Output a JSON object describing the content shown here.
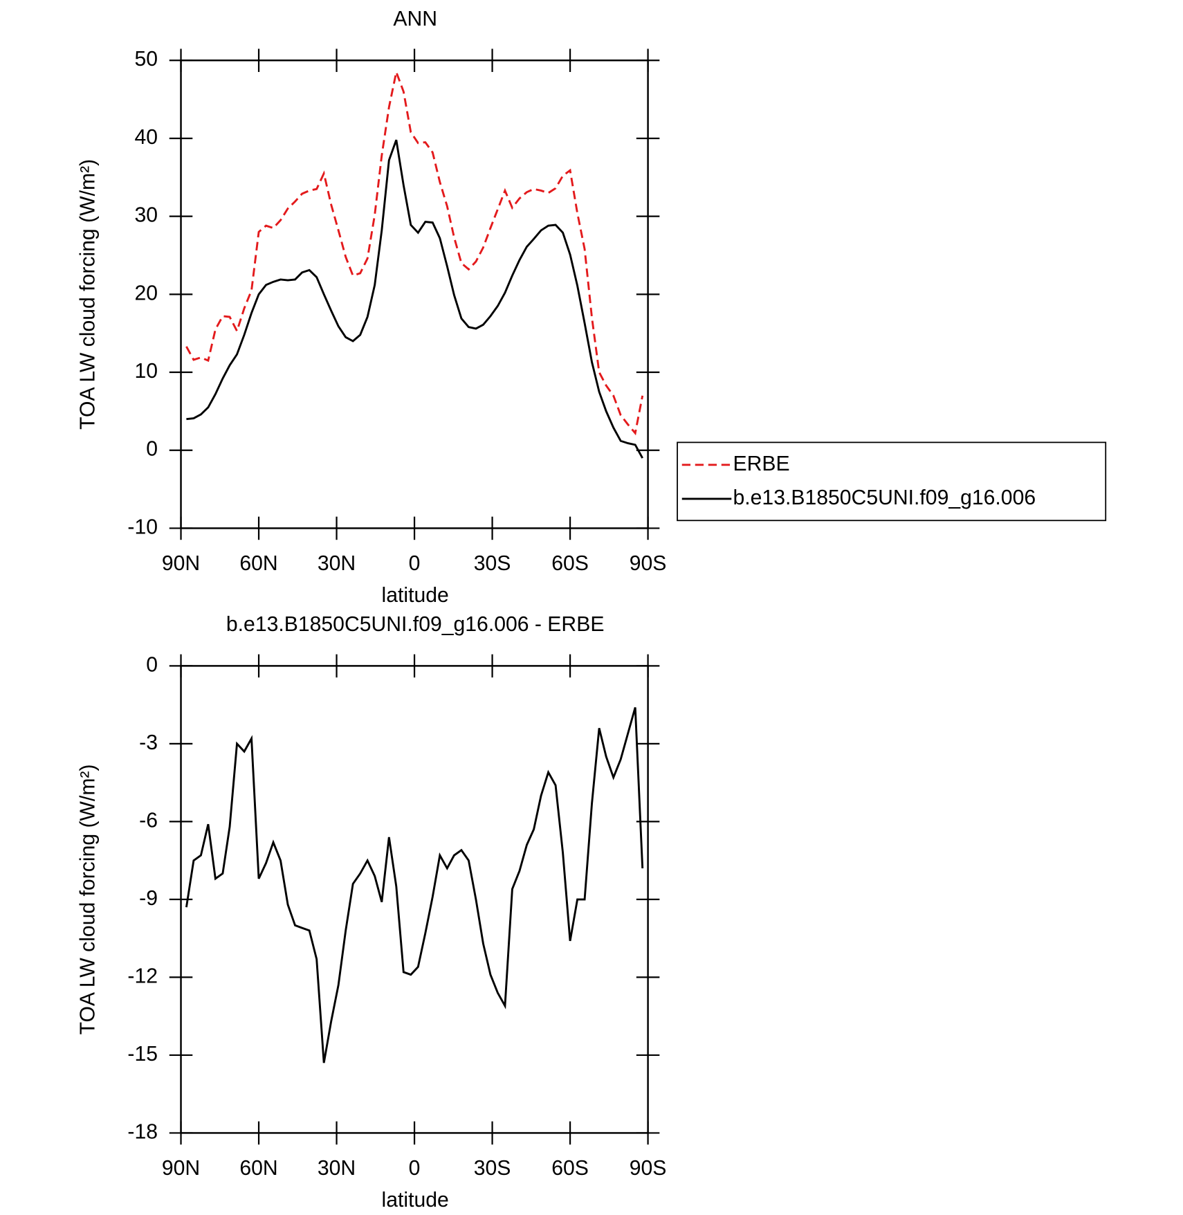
{
  "chart_data": [
    {
      "type": "line",
      "title": "ANN",
      "x_label": "latitude",
      "y_label": "TOA LW cloud forcing (W/m²)",
      "x": [
        87.9,
        85.1,
        82.3,
        79.5,
        76.7,
        73.9,
        71.2,
        68.4,
        65.6,
        62.8,
        60.0,
        57.2,
        54.4,
        51.6,
        48.8,
        46.0,
        43.3,
        40.5,
        37.7,
        34.9,
        32.1,
        29.3,
        26.5,
        23.7,
        20.9,
        18.1,
        15.3,
        12.6,
        9.8,
        7.0,
        4.2,
        1.4,
        -1.4,
        -4.2,
        -7.0,
        -9.8,
        -12.6,
        -15.3,
        -18.1,
        -20.9,
        -23.7,
        -26.5,
        -29.3,
        -32.1,
        -34.9,
        -37.7,
        -40.5,
        -43.3,
        -46.0,
        -48.8,
        -51.6,
        -54.4,
        -57.2,
        -60.0,
        -62.8,
        -65.6,
        -68.4,
        -71.2,
        -73.9,
        -76.7,
        -79.5,
        -82.3,
        -85.1,
        -87.9
      ],
      "series": [
        {
          "name": "ERBE",
          "color": "#e31a1c",
          "line_style": "dashed",
          "values": [
            13.3,
            11.6,
            11.9,
            11.5,
            15.5,
            17.2,
            17.1,
            15.3,
            18.2,
            20.5,
            28.0,
            28.8,
            28.5,
            29.5,
            31.0,
            31.9,
            32.9,
            33.3,
            33.5,
            35.5,
            31.5,
            28.2,
            24.8,
            22.4,
            22.7,
            24.6,
            30.2,
            37.8,
            44.0,
            48.5,
            46.0,
            40.8,
            39.4,
            39.5,
            38.2,
            34.4,
            31.3,
            27.3,
            24.0,
            23.2,
            24.2,
            26.0,
            28.5,
            30.9,
            33.3,
            31.1,
            32.3,
            33.1,
            33.5,
            33.3,
            33.0,
            33.6,
            35.2,
            35.9,
            30.4,
            25.8,
            17.0,
            10.0,
            8.3,
            7.0,
            4.5,
            3.3,
            2.2,
            7.0
          ]
        },
        {
          "name": "b.e13.B1850C5UNI.f09_g16.006",
          "color": "#000000",
          "line_style": "solid",
          "values": [
            4.0,
            4.1,
            4.6,
            5.5,
            7.2,
            9.2,
            10.9,
            12.3,
            14.8,
            17.6,
            20.0,
            21.2,
            21.6,
            21.9,
            21.8,
            21.9,
            22.8,
            23.1,
            22.2,
            20.0,
            17.9,
            15.9,
            14.5,
            14.0,
            14.8,
            17.1,
            21.2,
            28.2,
            37.2,
            39.8,
            34.0,
            28.9,
            27.9,
            29.3,
            29.2,
            27.2,
            23.6,
            19.9,
            16.9,
            15.8,
            15.6,
            16.1,
            17.2,
            18.5,
            20.2,
            22.4,
            24.4,
            26.1,
            27.1,
            28.2,
            28.8,
            28.9,
            27.9,
            25.1,
            21.1,
            16.3,
            11.3,
            7.5,
            5.0,
            2.9,
            1.2,
            0.9,
            0.7,
            -1.0
          ]
        }
      ],
      "xlim": [
        90,
        -90
      ],
      "xticks": [
        {
          "value": 90,
          "label": "90N"
        },
        {
          "value": 60,
          "label": "60N"
        },
        {
          "value": 30,
          "label": "30N"
        },
        0,
        {
          "value": -30,
          "label": "30S"
        },
        {
          "value": -60,
          "label": "60S"
        },
        {
          "value": -90,
          "label": "90S"
        }
      ],
      "ylim": [
        -10,
        50
      ],
      "yticks": [
        -10,
        0,
        10,
        20,
        30,
        40,
        50
      ],
      "legend": "right"
    },
    {
      "type": "line",
      "title": "b.e13.B1850C5UNI.f09_g16.006 - ERBE",
      "x_label": "latitude",
      "y_label": "TOA LW cloud forcing (W/m²)",
      "x": [
        87.9,
        85.1,
        82.3,
        79.5,
        76.7,
        73.9,
        71.2,
        68.4,
        65.6,
        62.8,
        60.0,
        57.2,
        54.4,
        51.6,
        48.8,
        46.0,
        43.3,
        40.5,
        37.7,
        34.9,
        32.1,
        29.3,
        26.5,
        23.7,
        20.9,
        18.1,
        15.3,
        12.6,
        9.8,
        7.0,
        4.2,
        1.4,
        -1.4,
        -4.2,
        -7.0,
        -9.8,
        -12.6,
        -15.3,
        -18.1,
        -20.9,
        -23.7,
        -26.5,
        -29.3,
        -32.1,
        -34.9,
        -37.7,
        -40.5,
        -43.3,
        -46.0,
        -48.8,
        -51.6,
        -54.4,
        -57.2,
        -60.0,
        -62.8,
        -65.6,
        -68.4,
        -71.2,
        -73.9,
        -76.7,
        -79.5,
        -82.3,
        -85.1,
        -87.9
      ],
      "series": [
        {
          "color": "#000000",
          "line_style": "solid",
          "values": [
            -9.3,
            -7.5,
            -7.3,
            -6.1,
            -8.2,
            -8.0,
            -6.2,
            -3.0,
            -3.3,
            -2.8,
            -8.2,
            -7.6,
            -6.8,
            -7.5,
            -9.2,
            -10.0,
            -10.1,
            -10.2,
            -11.3,
            -15.3,
            -13.7,
            -12.3,
            -10.2,
            -8.4,
            -8.0,
            -7.5,
            -8.1,
            -9.1,
            -6.6,
            -8.5,
            -11.8,
            -11.9,
            -11.6,
            -10.3,
            -8.9,
            -7.3,
            -7.8,
            -7.3,
            -7.1,
            -7.5,
            -9.0,
            -10.7,
            -11.9,
            -12.6,
            -13.1,
            -8.6,
            -7.9,
            -6.9,
            -6.3,
            -5.0,
            -4.1,
            -4.6,
            -7.2,
            -10.6,
            -9.0,
            -9.0,
            -5.3,
            -2.4,
            -3.5,
            -4.3,
            -3.6,
            -2.6,
            -1.6,
            -7.8
          ]
        }
      ],
      "xlim": [
        90,
        -90
      ],
      "xticks": [
        {
          "value": 90,
          "label": "90N"
        },
        {
          "value": 60,
          "label": "60N"
        },
        {
          "value": 30,
          "label": "30N"
        },
        0,
        {
          "value": -30,
          "label": "30S"
        },
        {
          "value": -60,
          "label": "60S"
        },
        {
          "value": -90,
          "label": "90S"
        }
      ],
      "ylim": [
        -18,
        0
      ],
      "yticks": [
        -18,
        -15,
        -12,
        -9,
        -6,
        -3,
        0
      ]
    }
  ]
}
